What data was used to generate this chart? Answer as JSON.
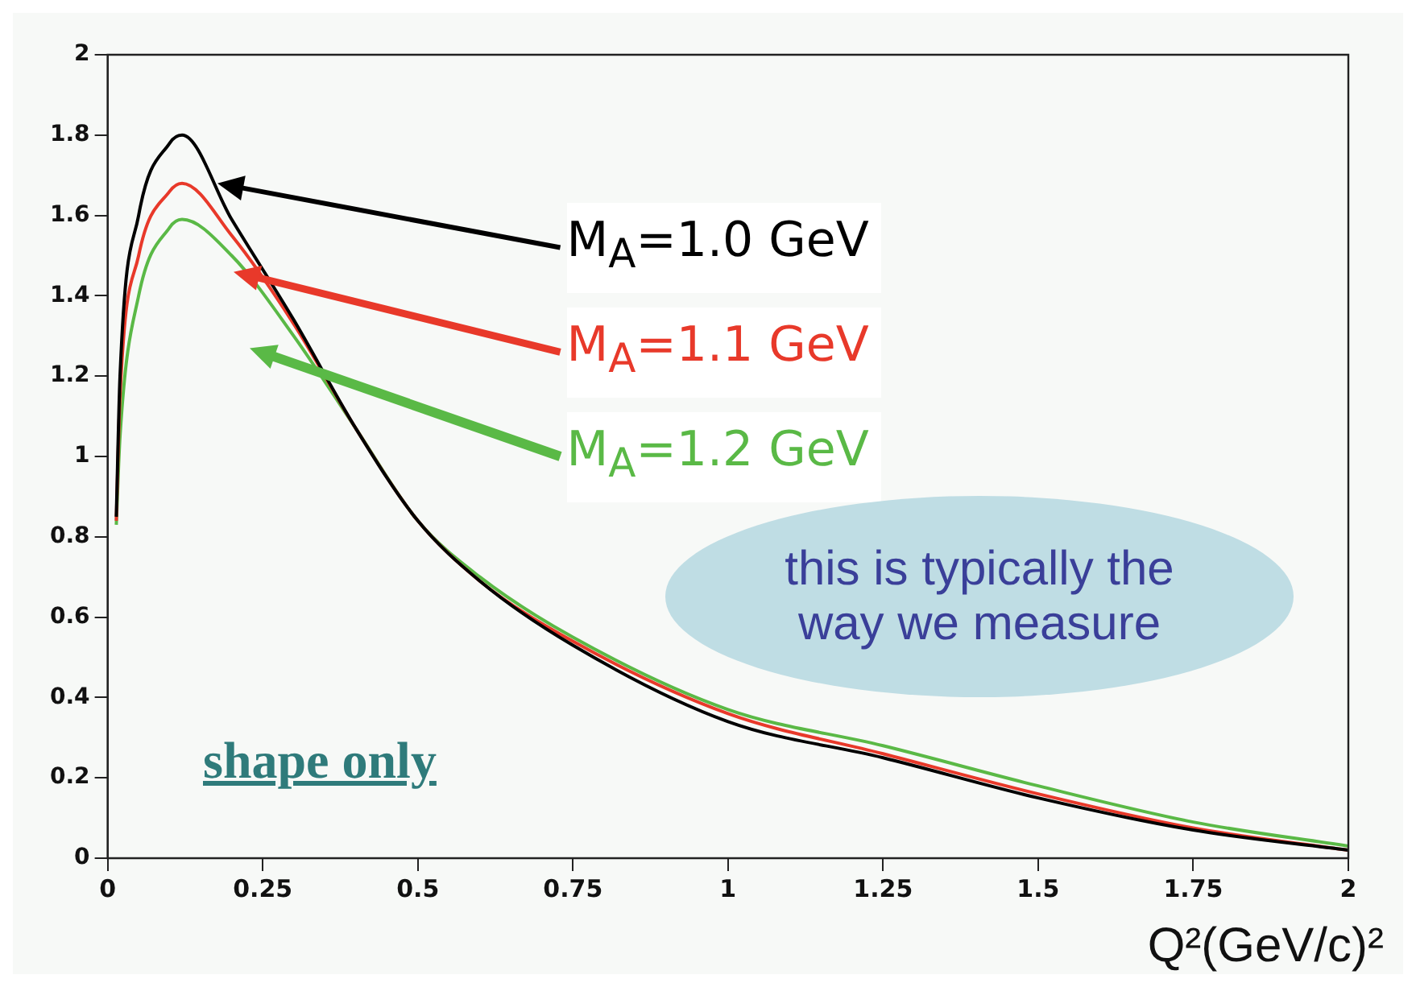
{
  "chart_data": {
    "type": "line",
    "xlabel": "Q²(GeV/c)²",
    "x": [
      0.014,
      0.02,
      0.05,
      0.1,
      0.12,
      0.2,
      0.3,
      0.4,
      0.5,
      0.6,
      0.75,
      1,
      1.25,
      1.5,
      1.75,
      2
    ],
    "series": [
      {
        "name": "M$_{A}$=1.0 GeV",
        "color": "#000000",
        "values": [
          0.85,
          1.2,
          1.6,
          1.78,
          1.8,
          1.59,
          1.34,
          1.07,
          0.84,
          0.69,
          0.53,
          0.34,
          0.25,
          0.15,
          0.07,
          0.02
        ]
      },
      {
        "name": "M$_{A}$=1.1 GeV",
        "color": "#e8392a",
        "values": [
          0.84,
          1.15,
          1.5,
          1.66,
          1.68,
          1.55,
          1.33,
          1.07,
          0.84,
          0.69,
          0.54,
          0.36,
          0.26,
          0.16,
          0.075,
          0.02
        ]
      },
      {
        "name": "M$_{A}$=1.2 GeV",
        "color": "#5ab946",
        "values": [
          0.83,
          1.05,
          1.4,
          1.57,
          1.59,
          1.5,
          1.3,
          1.07,
          0.84,
          0.7,
          0.55,
          0.37,
          0.28,
          0.18,
          0.09,
          0.03
        ]
      }
    ],
    "xlim": [
      0,
      2
    ],
    "xticks": [
      0,
      0.25,
      0.5,
      0.75,
      1,
      1.25,
      1.5,
      1.75,
      2
    ],
    "ylim": [
      0,
      2
    ],
    "yticks": [
      0,
      0.2,
      0.4,
      0.6,
      0.8,
      1,
      1.2,
      1.4,
      1.6,
      1.8,
      2
    ],
    "grid": false,
    "legend": "right",
    "marker": "none",
    "line_style": "solid",
    "annotations": [
      "shape only",
      "this is typically the way we measure"
    ]
  }
}
